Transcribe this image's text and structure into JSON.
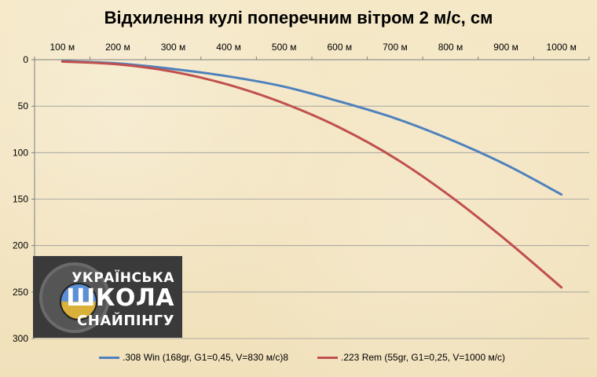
{
  "chart_data": {
    "type": "line",
    "title": "Відхилення кулі поперечним вітром 2 м/с, см",
    "categories": [
      "100 м",
      "200 м",
      "300 м",
      "400 м",
      "500 м",
      "600 м",
      "700 м",
      "800 м",
      "900 м",
      "1000 м"
    ],
    "y_ticks": [
      "0",
      "50",
      "100",
      "150",
      "200",
      "250",
      "300"
    ],
    "ylim": [
      0,
      300
    ],
    "y_inverted": true,
    "x_axis_position": "top",
    "grid": true,
    "legend_position": "bottom",
    "series": [
      {
        "name": ".308 Win (168gr, G1=0,45, V=830 м/с)8",
        "color": "#4f81bd",
        "values": [
          1.5,
          4,
          10,
          18,
          29,
          45,
          63,
          86,
          113,
          145
        ]
      },
      {
        "name": ".223 Rem (55gr, G1=0,25, V=1000 м/с)",
        "color": "#c0504d",
        "values": [
          2,
          5,
          13,
          27,
          47,
          73,
          106,
          147,
          194,
          245
        ]
      }
    ]
  },
  "logo": {
    "line1": "УКРАЇНСЬКА",
    "line2": "ШКОЛА",
    "line3": "СНАЙПІНГУ"
  }
}
